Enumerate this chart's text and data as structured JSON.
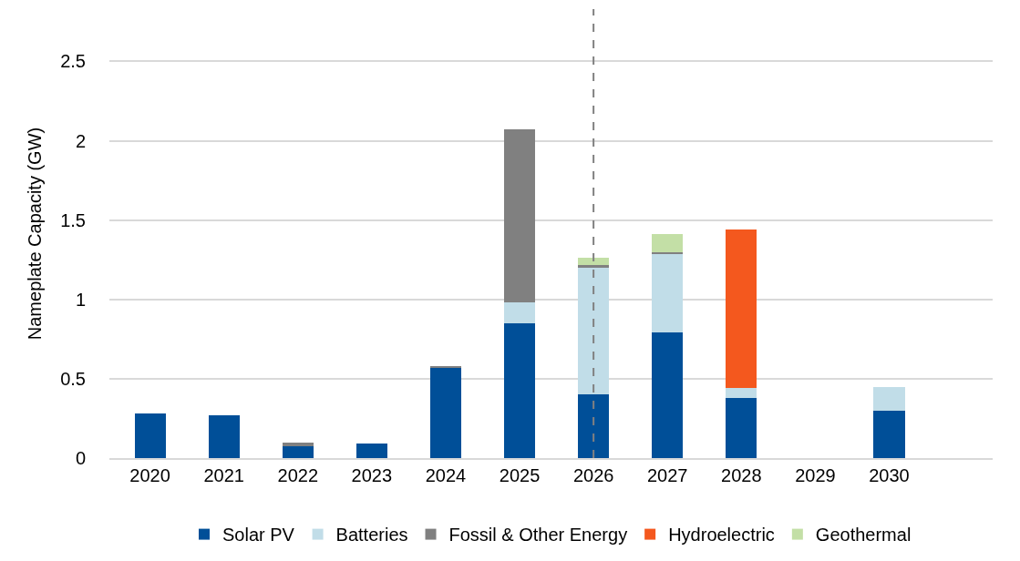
{
  "chart_data": {
    "type": "bar",
    "stacked": true,
    "ylabel": "Nameplate Capacity (GW)",
    "categories": [
      "2020",
      "2021",
      "2022",
      "2023",
      "2024",
      "2025",
      "2026",
      "2027",
      "2028",
      "2029",
      "2030"
    ],
    "series": [
      {
        "name": "Solar PV",
        "color": "#004f98",
        "values": [
          0.28,
          0.27,
          0.075,
          0.09,
          0.57,
          0.85,
          0.4,
          0.79,
          0.38,
          null,
          0.3
        ]
      },
      {
        "name": "Batteries",
        "color": "#c1dde8",
        "values": [
          null,
          null,
          null,
          null,
          null,
          0.13,
          0.8,
          0.5,
          0.06,
          null,
          0.15
        ]
      },
      {
        "name": "Fossil & Other Energy",
        "color": "#808080",
        "values": [
          null,
          null,
          0.025,
          null,
          0.01,
          1.09,
          0.015,
          0.01,
          null,
          null,
          null
        ]
      },
      {
        "name": "Hydroelectric",
        "color": "#f4581e",
        "values": [
          null,
          null,
          null,
          null,
          null,
          null,
          null,
          null,
          1.0,
          null,
          null
        ]
      },
      {
        "name": "Geothermal",
        "color": "#c3dfa6",
        "values": [
          null,
          null,
          null,
          null,
          null,
          null,
          0.05,
          0.11,
          null,
          null,
          null
        ]
      }
    ],
    "ylim": [
      0,
      2.83
    ],
    "yticks": [
      0,
      0.5,
      1,
      1.5,
      2,
      2.5
    ],
    "grid": "y",
    "legend": "bottom",
    "ref_lines": [
      {
        "axis": "x",
        "value": "2026",
        "color": "#808080",
        "line_style": "dashed"
      }
    ]
  }
}
